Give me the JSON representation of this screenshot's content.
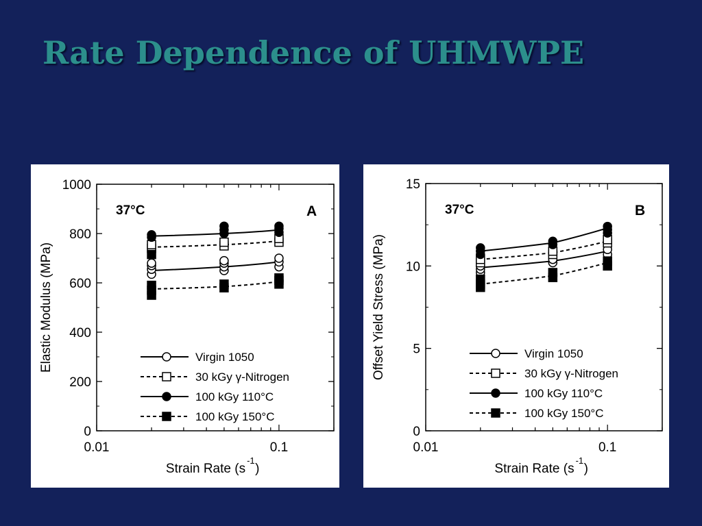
{
  "slide": {
    "title": "Rate Dependence of UHMWPE"
  },
  "chart_data": [
    {
      "type": "line",
      "panel_label": "A",
      "condition": "37°C",
      "xlabel": "Strain Rate (s",
      "xlabel_sup": "-1",
      "xlabel_close": ")",
      "ylabel": "Elastic Modulus (MPa)",
      "xscale": "log",
      "xlim": [
        0.01,
        0.2
      ],
      "ylim": [
        0,
        1000
      ],
      "x_ticks": [
        0.01,
        0.1
      ],
      "x_tick_labels": [
        "0.01",
        "0.1"
      ],
      "y_ticks": [
        0,
        200,
        400,
        600,
        800,
        1000
      ],
      "y_tick_labels": [
        "0",
        "200",
        "400",
        "600",
        "800",
        "1000"
      ],
      "legend_position": "bottom-right",
      "x": [
        0.02,
        0.05,
        0.1
      ],
      "series": [
        {
          "name": "Virgin 1050",
          "marker": "open-circle",
          "line": "solid",
          "values": [
            650,
            665,
            685
          ],
          "points": [
            [
              0.02,
              635
            ],
            [
              0.02,
              655
            ],
            [
              0.02,
              670
            ],
            [
              0.02,
              680
            ],
            [
              0.05,
              650
            ],
            [
              0.05,
              665
            ],
            [
              0.05,
              680
            ],
            [
              0.05,
              690
            ],
            [
              0.1,
              665
            ],
            [
              0.1,
              685
            ],
            [
              0.1,
              700
            ]
          ]
        },
        {
          "name": "30 kGy γ-Nitrogen",
          "marker": "open-square",
          "line": "dashed",
          "values": [
            745,
            755,
            770
          ],
          "points": [
            [
              0.02,
              740
            ],
            [
              0.02,
              755
            ],
            [
              0.05,
              750
            ],
            [
              0.05,
              765
            ],
            [
              0.1,
              765
            ],
            [
              0.1,
              780
            ]
          ]
        },
        {
          "name": "100 kGy 110°C",
          "marker": "filled-circle",
          "line": "solid",
          "values": [
            790,
            800,
            815
          ],
          "points": [
            [
              0.02,
              785
            ],
            [
              0.02,
              795
            ],
            [
              0.05,
              800
            ],
            [
              0.05,
              815
            ],
            [
              0.05,
              830
            ],
            [
              0.1,
              805
            ],
            [
              0.1,
              820
            ],
            [
              0.1,
              830
            ]
          ]
        },
        {
          "name": "100 kGy 150°C",
          "marker": "filled-square",
          "line": "dashed",
          "values": [
            575,
            585,
            605
          ],
          "points": [
            [
              0.02,
              550
            ],
            [
              0.02,
              570
            ],
            [
              0.02,
              590
            ],
            [
              0.02,
              715
            ],
            [
              0.05,
              580
            ],
            [
              0.05,
              595
            ],
            [
              0.1,
              595
            ],
            [
              0.1,
              610
            ],
            [
              0.1,
              620
            ]
          ]
        }
      ]
    },
    {
      "type": "line",
      "panel_label": "B",
      "condition": "37°C",
      "xlabel": "Strain Rate (s",
      "xlabel_sup": "-1",
      "xlabel_close": ")",
      "ylabel": "Offset Yield Stress (MPa)",
      "xscale": "log",
      "xlim": [
        0.01,
        0.2
      ],
      "ylim": [
        0,
        15
      ],
      "x_ticks": [
        0.01,
        0.1
      ],
      "x_tick_labels": [
        "0.01",
        "0.1"
      ],
      "y_ticks": [
        0,
        5,
        10,
        15
      ],
      "y_tick_labels": [
        "0",
        "5",
        "10",
        "15"
      ],
      "legend_position": "bottom-right",
      "x": [
        0.02,
        0.05,
        0.1
      ],
      "series": [
        {
          "name": "Virgin 1050",
          "marker": "open-circle",
          "line": "solid",
          "values": [
            9.9,
            10.3,
            10.9
          ],
          "points": [
            [
              0.02,
              9.6
            ],
            [
              0.02,
              9.8
            ],
            [
              0.02,
              10.0
            ],
            [
              0.05,
              10.2
            ],
            [
              0.05,
              10.4
            ],
            [
              0.1,
              10.7
            ],
            [
              0.1,
              11.0
            ]
          ]
        },
        {
          "name": "30 kGy γ-Nitrogen",
          "marker": "open-square",
          "line": "dashed",
          "values": [
            10.4,
            10.8,
            11.5
          ],
          "points": [
            [
              0.02,
              10.2
            ],
            [
              0.02,
              10.4
            ],
            [
              0.05,
              10.7
            ],
            [
              0.05,
              10.9
            ],
            [
              0.1,
              11.4
            ],
            [
              0.1,
              11.6
            ]
          ]
        },
        {
          "name": "100 kGy 110°C",
          "marker": "filled-circle",
          "line": "solid",
          "values": [
            10.9,
            11.4,
            12.3
          ],
          "points": [
            [
              0.02,
              10.7
            ],
            [
              0.02,
              10.9
            ],
            [
              0.02,
              11.1
            ],
            [
              0.05,
              11.3
            ],
            [
              0.05,
              11.5
            ],
            [
              0.1,
              12.0
            ],
            [
              0.1,
              12.2
            ],
            [
              0.1,
              12.4
            ]
          ]
        },
        {
          "name": "100 kGy 150°C",
          "marker": "filled-square",
          "line": "dashed",
          "values": [
            8.9,
            9.4,
            10.2
          ],
          "points": [
            [
              0.02,
              8.7
            ],
            [
              0.02,
              8.9
            ],
            [
              0.02,
              9.2
            ],
            [
              0.05,
              9.3
            ],
            [
              0.05,
              9.6
            ],
            [
              0.1,
              10.0
            ],
            [
              0.1,
              10.3
            ]
          ]
        }
      ]
    }
  ]
}
